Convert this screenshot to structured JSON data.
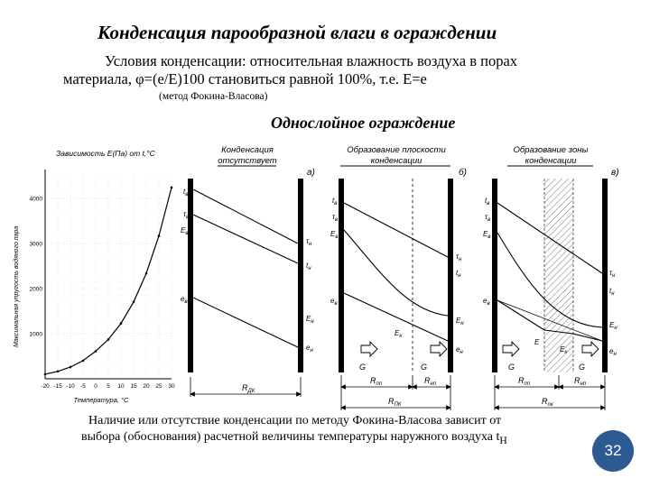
{
  "slide": {
    "title": "Конденсация парообразной влаги в ограждении",
    "condition_line1": "Условия конденсации:  относительная влажность воздуха в порах",
    "condition_line2": "материала,  φ=(е/Е)100 становиться равной 100%, т.е. Е=е",
    "method": "(метод Фокина-Власова)",
    "subtitle": "Однослойное ограждение",
    "footer_line1": "Наличие или отсутствие конденсации по методу Фокина-Власова зависит от",
    "footer_line2": "выбора (обоснования) расчетной величины температуры наружного воздуха t",
    "footer_sub": "Н",
    "page_number": "32"
  },
  "chart_data": {
    "type": "line",
    "title": "Зависимость E(Па) от t,°C",
    "xlabel": "Температура, °C",
    "ylabel": "Максимальная упругость водяного пара",
    "x_ticks": [
      "-20",
      "-15",
      "-10",
      "-5",
      "0",
      "5",
      "10",
      "15",
      "20",
      "25",
      "30"
    ],
    "y_ticks": [
      "1000",
      "2000",
      "3000",
      "4000"
    ],
    "series": [
      {
        "x": [
          -20,
          -15,
          -10,
          -5,
          0,
          5,
          10,
          15,
          20,
          25,
          30
        ],
        "values": [
          103,
          165,
          260,
          401,
          611,
          872,
          1228,
          1705,
          2338,
          3168,
          4242
        ]
      }
    ],
    "grid": true
  },
  "diagrams": {
    "a": {
      "caption_l1": "Конденсация",
      "caption_l2": "отсутствует",
      "letter": "а)",
      "labels": [
        "t",
        "τ",
        "E",
        "e",
        "τ",
        "t",
        "E",
        "e"
      ],
      "subs": [
        "в",
        "в",
        "в",
        "в",
        "н",
        "н",
        "н",
        "н"
      ],
      "dim": "R",
      "dim_sub": "ДК"
    },
    "b": {
      "caption_l1": "Образование плоскости",
      "caption_l2": "конденсации",
      "letter": "б)",
      "labels": [
        "t",
        "τ",
        "E",
        "e",
        "τ",
        "t",
        "E",
        "e",
        "E",
        "G",
        "G"
      ],
      "subs": [
        "в",
        "в",
        "в",
        "в",
        "н",
        "н",
        "н",
        "н",
        "к",
        "",
        ""
      ],
      "dim1": "R",
      "dim1_sub": "пп",
      "dim2": "R",
      "dim2_sub": "нп",
      "dim": "R",
      "dim_sub": "ПК"
    },
    "c": {
      "caption_l1": "Образование зоны",
      "caption_l2": "конденсации",
      "letter": "в)",
      "labels": [
        "t",
        "τ",
        "E",
        "e",
        "τ",
        "t",
        "E",
        "e",
        "E",
        "E",
        "G",
        "G"
      ],
      "subs": [
        "в",
        "в",
        "в",
        "в",
        "н",
        "н",
        "н",
        "н",
        "",
        "к",
        "",
        ""
      ],
      "dim1": "R",
      "dim1_sub": "пп",
      "dim2": "R",
      "dim2_sub": "нп",
      "dim": "R",
      "dim_sub": "ок"
    }
  },
  "colors": {
    "badge": "#2d5a93",
    "curve": "#000000"
  }
}
